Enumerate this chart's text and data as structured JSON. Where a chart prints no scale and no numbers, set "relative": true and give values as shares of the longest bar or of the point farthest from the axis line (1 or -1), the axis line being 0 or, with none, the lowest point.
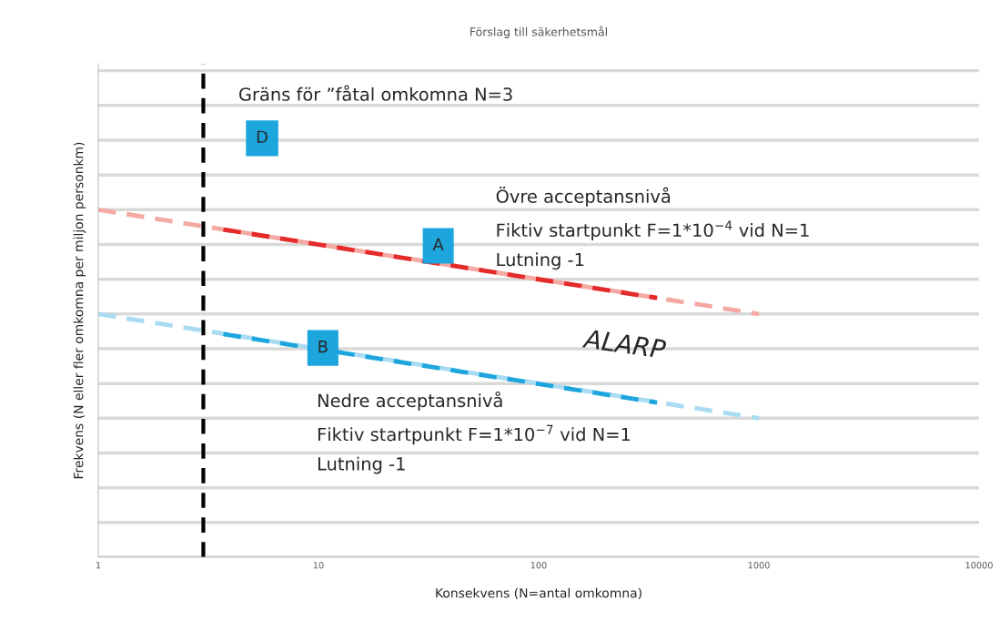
{
  "chart_data": {
    "type": "line",
    "title": "Förslag till säkerhetsmål",
    "xlabel": "Konsekvens (N=antal omkomna)",
    "ylabel": "Frekvens (N eller fler omkomna per miljon personkm)",
    "relative": true,
    "log": "x",
    "xlim": [
      1,
      10000
    ],
    "xticks": [
      1,
      10,
      100,
      1000,
      10000
    ],
    "tick_labels": "x",
    "grid": "y",
    "line_style": "dashed",
    "marker": "none",
    "legend": false,
    "series": [
      {
        "color": "#f4a9a3",
        "x": [
          1,
          1000
        ],
        "values": [
          1.0,
          0.7
        ]
      },
      {
        "color": "#e52a2a",
        "x": [
          3.7,
          345
        ],
        "values": [
          0.943,
          0.746
        ]
      },
      {
        "color": "#a9dbf2",
        "x": [
          1,
          1000
        ],
        "values": [
          0.7,
          0.4
        ]
      },
      {
        "color": "#1ca6dd",
        "x": [
          3.7,
          345
        ],
        "values": [
          0.642,
          0.445
        ]
      }
    ],
    "ref_lines": [
      {
        "axis": "x",
        "value": 3,
        "label": "Gräns för ”fåtal omkomna N=3",
        "color": "#000000",
        "line_style": "dashed"
      }
    ],
    "annotations": [
      "D",
      "Övre acceptansnivå\nFiktiv startpunkt F=1*10$^{−4}$ vid N=1\nLutning -1",
      "A",
      "B",
      "ALARP",
      "Nedre acceptansnivå\nFiktiv startpunkt F=1*10$^{−7}$ vid N=1\nLutning -1"
    ]
  }
}
